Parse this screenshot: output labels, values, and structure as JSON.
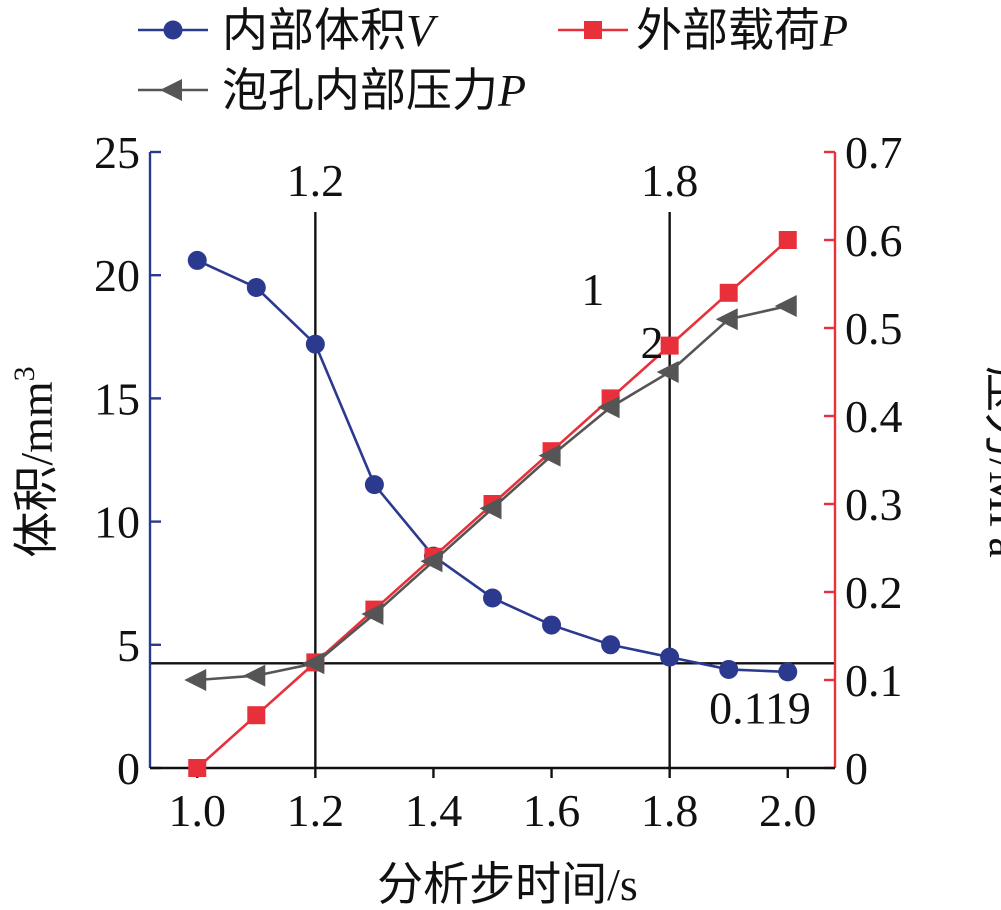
{
  "chart_data": {
    "type": "line",
    "x": [
      1.0,
      1.1,
      1.2,
      1.3,
      1.4,
      1.5,
      1.6,
      1.7,
      1.8,
      1.9,
      2.0
    ],
    "xlabel": "分析步时间/s",
    "xlim": [
      0.92,
      2.08
    ],
    "xticks": [
      1.0,
      1.2,
      1.4,
      1.6,
      1.8,
      2.0
    ],
    "xtick_labels": [
      "1.0",
      "1.2",
      "1.4",
      "1.6",
      "1.8",
      "2.0"
    ],
    "y_left": {
      "label": "体积/mm",
      "label_sup": "3",
      "ylim": [
        0,
        25
      ],
      "ticks": [
        0,
        5,
        10,
        15,
        20,
        25
      ],
      "tick_labels": [
        "0",
        "5",
        "10",
        "15",
        "20",
        "25"
      ],
      "color": "#2b3a8f"
    },
    "y_right": {
      "label": "压力/MPa",
      "ylim": [
        0,
        0.7
      ],
      "ticks": [
        0,
        0.1,
        0.2,
        0.3,
        0.4,
        0.5,
        0.6,
        0.7
      ],
      "tick_labels": [
        "0",
        "0.1",
        "0.2",
        "0.3",
        "0.4",
        "0.5",
        "0.6",
        "0.7"
      ],
      "color": "#e8303a"
    },
    "series": [
      {
        "name": "内部体积",
        "name_var": "V",
        "axis": "left",
        "marker": "circle",
        "color": "#2b3a8f",
        "values": [
          20.6,
          19.5,
          17.2,
          11.5,
          8.6,
          6.9,
          5.8,
          5.0,
          4.5,
          4.0,
          3.9
        ]
      },
      {
        "name": "外部载荷",
        "name_var": "P",
        "axis": "right",
        "marker": "square",
        "color": "#e8303a",
        "values": [
          0.0,
          0.06,
          0.12,
          0.18,
          0.24,
          0.3,
          0.36,
          0.42,
          0.48,
          0.54,
          0.6
        ]
      },
      {
        "name": "泡孔内部压力",
        "name_var": "P",
        "axis": "right",
        "marker": "triangle-left",
        "color": "#555555",
        "values": [
          0.1,
          0.105,
          0.119,
          0.175,
          0.235,
          0.295,
          0.355,
          0.41,
          0.45,
          0.51,
          0.525
        ]
      }
    ],
    "reference_lines": {
      "vertical": [
        {
          "x": 1.2,
          "label": "1.2"
        },
        {
          "x": 1.8,
          "label": "1.8"
        }
      ],
      "horizontal": [
        {
          "y_right": 0.119,
          "label": "0.119"
        }
      ]
    },
    "annotations": [
      {
        "text": "1",
        "x": 1.67,
        "y_right": 0.56
      },
      {
        "text": "2",
        "x": 1.77,
        "y_right": 0.5
      }
    ],
    "legend": "top",
    "grid": false
  }
}
